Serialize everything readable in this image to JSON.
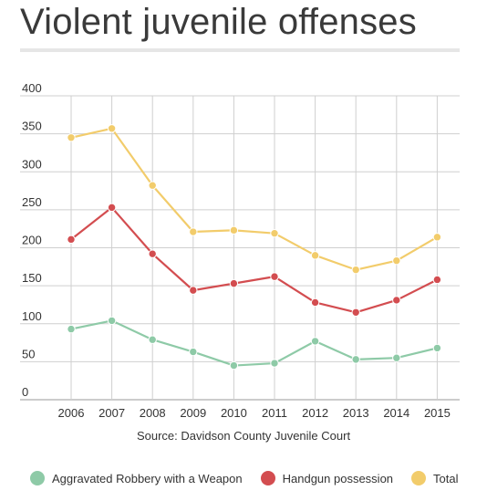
{
  "title": "Violent juvenile offenses",
  "source": "Source: Davidson County Juvenile Court",
  "chart_data": {
    "type": "line",
    "title": "Violent juvenile offenses",
    "xlabel": "",
    "ylabel": "",
    "x": [
      "2006",
      "2007",
      "2008",
      "2009",
      "2010",
      "2011",
      "2012",
      "2013",
      "2014",
      "2015"
    ],
    "yticks": [
      0,
      50,
      100,
      150,
      200,
      250,
      300,
      350,
      400
    ],
    "ylim": [
      0,
      400
    ],
    "grid": true,
    "legend_position": "bottom",
    "series": [
      {
        "name": "Aggravated Robbery with a Weapon",
        "color": "#8ecaa7",
        "values": [
          93,
          104,
          79,
          63,
          45,
          48,
          77,
          53,
          55,
          68
        ]
      },
      {
        "name": "Handgun possession",
        "color": "#d34d50",
        "values": [
          211,
          253,
          192,
          144,
          153,
          162,
          128,
          115,
          131,
          158
        ]
      },
      {
        "name": "Total",
        "color": "#f2cc6b",
        "values": [
          345,
          357,
          282,
          221,
          223,
          219,
          190,
          171,
          183,
          214
        ]
      }
    ]
  }
}
